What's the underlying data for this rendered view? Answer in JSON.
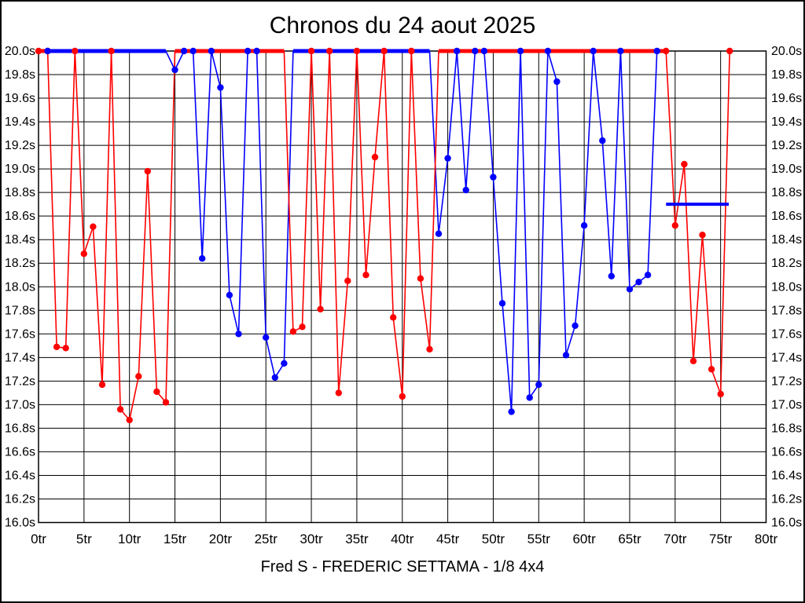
{
  "window": {
    "background": "#ffffff",
    "border_color": "#000000"
  },
  "chart_data": {
    "type": "line",
    "title": "Chronos du 24 aout 2025",
    "caption": "Fred S - FREDERIC SETTAMA - 1/8 4x4",
    "colors": {
      "grid": "#000000",
      "text": "#000000",
      "red_series": "#ff0000",
      "blue_series": "#0000ff"
    },
    "x_axis": {
      "min": 0,
      "max": 80,
      "tick_step": 5,
      "unit": "tr",
      "tick_labels": [
        "0tr",
        "5tr",
        "10tr",
        "15tr",
        "20tr",
        "25tr",
        "30tr",
        "35tr",
        "40tr",
        "45tr",
        "50tr",
        "55tr",
        "60tr",
        "65tr",
        "70tr",
        "75tr",
        "80tr"
      ]
    },
    "y_axis": {
      "min": 16.0,
      "max": 20.0,
      "tick_step": 0.2,
      "unit": "s",
      "labels_on_both_sides": true,
      "tick_labels": [
        "20.0s",
        "19.8s",
        "19.6s",
        "19.4s",
        "19.2s",
        "19.0s",
        "18.8s",
        "18.6s",
        "18.4s",
        "18.2s",
        "18.0s",
        "17.8s",
        "17.6s",
        "17.4s",
        "17.2s",
        "17.0s",
        "16.8s",
        "16.6s",
        "16.4s",
        "16.2s",
        "16.0s"
      ]
    },
    "clip_value": 20.0,
    "series": [
      {
        "name": "red",
        "color": "#ff0000",
        "points": [
          [
            0,
            20.0,
            1
          ],
          [
            1,
            20.0,
            1
          ],
          [
            2,
            17.49,
            1
          ],
          [
            3,
            17.48,
            1
          ],
          [
            4,
            20.0,
            1
          ],
          [
            5,
            18.28,
            1
          ],
          [
            6,
            18.51,
            1
          ],
          [
            7,
            17.17,
            1
          ],
          [
            8,
            20.0,
            1
          ],
          [
            9,
            16.96,
            1
          ],
          [
            10,
            16.87,
            1
          ],
          [
            11,
            17.24,
            1
          ],
          [
            12,
            18.98,
            1
          ],
          [
            13,
            17.11,
            1
          ],
          [
            14,
            17.02,
            1
          ],
          [
            15,
            20.0,
            0
          ],
          [
            16,
            20.0,
            0
          ],
          [
            17,
            20.0,
            0
          ],
          [
            18,
            20.0,
            0
          ],
          [
            19,
            20.0,
            0
          ],
          [
            20,
            20.0,
            0
          ],
          [
            21,
            20.0,
            0
          ],
          [
            22,
            20.0,
            0
          ],
          [
            23,
            20.0,
            0
          ],
          [
            24,
            20.0,
            0
          ],
          [
            25,
            20.0,
            0
          ],
          [
            26,
            20.0,
            0
          ],
          [
            27,
            20.0,
            0
          ],
          [
            28,
            17.62,
            1
          ],
          [
            29,
            17.66,
            1
          ],
          [
            30,
            20.0,
            1
          ],
          [
            31,
            17.81,
            1
          ],
          [
            32,
            20.0,
            1
          ],
          [
            33,
            17.1,
            1
          ],
          [
            34,
            18.05,
            1
          ],
          [
            35,
            20.0,
            1
          ],
          [
            36,
            18.1,
            1
          ],
          [
            37,
            19.1,
            1
          ],
          [
            38,
            20.0,
            1
          ],
          [
            39,
            17.74,
            1
          ],
          [
            40,
            17.07,
            1
          ],
          [
            41,
            20.0,
            1
          ],
          [
            42,
            18.07,
            1
          ],
          [
            43,
            17.47,
            1
          ],
          [
            44,
            20.0,
            0
          ],
          [
            45,
            20.0,
            0
          ],
          [
            46,
            20.0,
            0
          ],
          [
            47,
            20.0,
            0
          ],
          [
            48,
            20.0,
            0
          ],
          [
            49,
            20.0,
            0
          ],
          [
            50,
            20.0,
            0
          ],
          [
            51,
            20.0,
            0
          ],
          [
            52,
            20.0,
            0
          ],
          [
            53,
            20.0,
            0
          ],
          [
            54,
            20.0,
            0
          ],
          [
            55,
            20.0,
            0
          ],
          [
            56,
            20.0,
            0
          ],
          [
            57,
            20.0,
            0
          ],
          [
            58,
            20.0,
            0
          ],
          [
            59,
            20.0,
            0
          ],
          [
            60,
            20.0,
            0
          ],
          [
            61,
            20.0,
            0
          ],
          [
            62,
            20.0,
            0
          ],
          [
            63,
            20.0,
            0
          ],
          [
            64,
            20.0,
            0
          ],
          [
            65,
            20.0,
            0
          ],
          [
            66,
            20.0,
            0
          ],
          [
            67,
            20.0,
            0
          ],
          [
            68,
            20.0,
            0
          ],
          [
            69,
            20.0,
            1
          ],
          [
            70,
            18.52,
            1
          ],
          [
            71,
            19.04,
            1
          ],
          [
            72,
            17.37,
            1
          ],
          [
            73,
            18.44,
            1
          ],
          [
            74,
            17.3,
            1
          ],
          [
            75,
            17.09,
            1
          ],
          [
            76,
            20.0,
            1
          ]
        ]
      },
      {
        "name": "blue",
        "color": "#0000ff",
        "points": [
          [
            1,
            20.0,
            1
          ],
          [
            2,
            20.0,
            0
          ],
          [
            3,
            20.0,
            0
          ],
          [
            4,
            20.0,
            0
          ],
          [
            5,
            20.0,
            0
          ],
          [
            6,
            20.0,
            0
          ],
          [
            7,
            20.0,
            0
          ],
          [
            8,
            20.0,
            0
          ],
          [
            9,
            20.0,
            0
          ],
          [
            10,
            20.0,
            0
          ],
          [
            11,
            20.0,
            0
          ],
          [
            12,
            20.0,
            0
          ],
          [
            13,
            20.0,
            0
          ],
          [
            14,
            20.0,
            0
          ],
          [
            15,
            19.84,
            1
          ],
          [
            16,
            20.0,
            1
          ],
          [
            17,
            20.0,
            1
          ],
          [
            18,
            18.24,
            1
          ],
          [
            19,
            20.0,
            1
          ],
          [
            20,
            19.69,
            1
          ],
          [
            21,
            17.93,
            1
          ],
          [
            22,
            17.6,
            1
          ],
          [
            23,
            20.0,
            1
          ],
          [
            24,
            20.0,
            1
          ],
          [
            25,
            17.57,
            1
          ],
          [
            26,
            17.23,
            1
          ],
          [
            27,
            17.35,
            1
          ],
          [
            28,
            20.0,
            0
          ],
          [
            29,
            20.0,
            0
          ],
          [
            30,
            20.0,
            0
          ],
          [
            31,
            20.0,
            0
          ],
          [
            32,
            20.0,
            0
          ],
          [
            33,
            20.0,
            0
          ],
          [
            34,
            20.0,
            0
          ],
          [
            35,
            20.0,
            0
          ],
          [
            36,
            20.0,
            0
          ],
          [
            37,
            20.0,
            0
          ],
          [
            38,
            20.0,
            0
          ],
          [
            39,
            20.0,
            0
          ],
          [
            40,
            20.0,
            0
          ],
          [
            41,
            20.0,
            0
          ],
          [
            42,
            20.0,
            0
          ],
          [
            43,
            20.0,
            0
          ],
          [
            44,
            18.45,
            1
          ],
          [
            45,
            19.09,
            1
          ],
          [
            46,
            20.0,
            1
          ],
          [
            47,
            18.82,
            1
          ],
          [
            48,
            20.0,
            1
          ],
          [
            49,
            20.0,
            1
          ],
          [
            50,
            18.93,
            1
          ],
          [
            51,
            17.86,
            1
          ],
          [
            52,
            16.94,
            1
          ],
          [
            53,
            20.0,
            1
          ],
          [
            54,
            17.06,
            1
          ],
          [
            55,
            17.17,
            1
          ],
          [
            56,
            20.0,
            1
          ],
          [
            57,
            19.74,
            1
          ],
          [
            58,
            17.42,
            1
          ],
          [
            59,
            17.67,
            1
          ],
          [
            60,
            18.52,
            1
          ],
          [
            61,
            20.0,
            1
          ],
          [
            62,
            19.24,
            1
          ],
          [
            63,
            18.09,
            1
          ],
          [
            64,
            20.0,
            1
          ],
          [
            65,
            17.98,
            1
          ],
          [
            66,
            18.04,
            1
          ],
          [
            67,
            18.1,
            1
          ],
          [
            68,
            20.0,
            1
          ]
        ]
      }
    ],
    "flat_bar": {
      "series": "blue",
      "color": "#0000ff",
      "y": 18.7,
      "x_start": 69,
      "x_end": 75.9
    }
  }
}
